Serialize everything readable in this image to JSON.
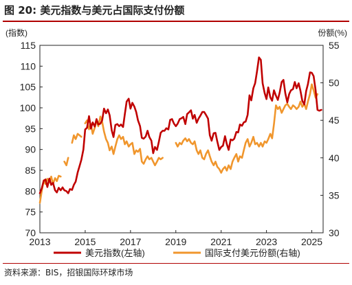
{
  "header": {
    "figure_label": "图 20:",
    "title": "美元指数与美元占国际支付份额"
  },
  "footer": {
    "source": "资料来源：BIS，招银国际环球市场"
  },
  "colors": {
    "accent_rule": "#b00000",
    "series_usd_index": "#c00000",
    "series_payment_share": "#f0962d",
    "axis": "#222222"
  },
  "chart_data": {
    "type": "line",
    "left_axis": {
      "label": "(指数)",
      "min": 70,
      "max": 115,
      "ticks": [
        70,
        75,
        80,
        85,
        90,
        95,
        100,
        105,
        110,
        115
      ]
    },
    "right_axis": {
      "label": "份额(%)",
      "min": 30,
      "max": 55,
      "ticks": [
        30,
        35,
        40,
        45,
        50,
        55
      ]
    },
    "x_axis": {
      "min": 2013,
      "max": 2025.5,
      "ticks": [
        2013,
        2015,
        2017,
        2019,
        2021,
        2023,
        2025
      ]
    },
    "grid": false,
    "legend_position": "bottom",
    "series": [
      {
        "name": "美元指数(左轴)",
        "axis": "left",
        "points": [
          [
            2013.0,
            79.5
          ],
          [
            2013.08,
            80.6
          ],
          [
            2013.17,
            82.5
          ],
          [
            2013.25,
            82.8
          ],
          [
            2013.33,
            81.0
          ],
          [
            2013.42,
            83.0
          ],
          [
            2013.5,
            81.5
          ],
          [
            2013.58,
            82.0
          ],
          [
            2013.67,
            80.2
          ],
          [
            2013.75,
            79.7
          ],
          [
            2013.83,
            80.8
          ],
          [
            2013.92,
            80.2
          ],
          [
            2014.0,
            80.9
          ],
          [
            2014.08,
            80.2
          ],
          [
            2014.17,
            80.0
          ],
          [
            2014.25,
            79.5
          ],
          [
            2014.33,
            80.5
          ],
          [
            2014.42,
            80.3
          ],
          [
            2014.5,
            81.5
          ],
          [
            2014.58,
            82.3
          ],
          [
            2014.67,
            84.5
          ],
          [
            2014.75,
            86.0
          ],
          [
            2014.83,
            87.5
          ],
          [
            2014.92,
            90.0
          ],
          [
            2015.0,
            94.8
          ],
          [
            2015.08,
            95.2
          ],
          [
            2015.17,
            98.0
          ],
          [
            2015.25,
            95.0
          ],
          [
            2015.33,
            96.5
          ],
          [
            2015.42,
            95.5
          ],
          [
            2015.5,
            97.3
          ],
          [
            2015.58,
            96.0
          ],
          [
            2015.67,
            96.2
          ],
          [
            2015.75,
            97.0
          ],
          [
            2015.83,
            99.8
          ],
          [
            2015.92,
            98.7
          ],
          [
            2016.0,
            99.6
          ],
          [
            2016.08,
            98.2
          ],
          [
            2016.17,
            94.6
          ],
          [
            2016.25,
            93.0
          ],
          [
            2016.33,
            95.9
          ],
          [
            2016.42,
            96.1
          ],
          [
            2016.5,
            95.6
          ],
          [
            2016.58,
            96.0
          ],
          [
            2016.67,
            95.4
          ],
          [
            2016.75,
            98.5
          ],
          [
            2016.83,
            101.5
          ],
          [
            2016.92,
            102.2
          ],
          [
            2017.0,
            99.8
          ],
          [
            2017.08,
            101.2
          ],
          [
            2017.17,
            100.3
          ],
          [
            2017.25,
            99.0
          ],
          [
            2017.33,
            97.0
          ],
          [
            2017.42,
            95.6
          ],
          [
            2017.5,
            92.8
          ],
          [
            2017.58,
            92.6
          ],
          [
            2017.67,
            93.1
          ],
          [
            2017.75,
            94.5
          ],
          [
            2017.83,
            93.0
          ],
          [
            2017.92,
            92.1
          ],
          [
            2018.0,
            89.1
          ],
          [
            2018.08,
            90.6
          ],
          [
            2018.17,
            89.9
          ],
          [
            2018.25,
            91.8
          ],
          [
            2018.33,
            94.0
          ],
          [
            2018.42,
            94.5
          ],
          [
            2018.5,
            94.5
          ],
          [
            2018.58,
            95.1
          ],
          [
            2018.67,
            94.8
          ],
          [
            2018.75,
            97.1
          ],
          [
            2018.83,
            97.3
          ],
          [
            2018.92,
            96.2
          ],
          [
            2019.0,
            95.6
          ],
          [
            2019.08,
            96.2
          ],
          [
            2019.17,
            97.3
          ],
          [
            2019.25,
            97.5
          ],
          [
            2019.33,
            97.8
          ],
          [
            2019.42,
            96.1
          ],
          [
            2019.5,
            98.5
          ],
          [
            2019.58,
            98.9
          ],
          [
            2019.67,
            99.4
          ],
          [
            2019.75,
            97.4
          ],
          [
            2019.83,
            98.3
          ],
          [
            2019.92,
            96.4
          ],
          [
            2020.0,
            97.4
          ],
          [
            2020.08,
            98.1
          ],
          [
            2020.17,
            99.0
          ],
          [
            2020.25,
            99.0
          ],
          [
            2020.33,
            98.3
          ],
          [
            2020.42,
            97.4
          ],
          [
            2020.5,
            93.4
          ],
          [
            2020.58,
            92.1
          ],
          [
            2020.67,
            93.9
          ],
          [
            2020.75,
            94.0
          ],
          [
            2020.83,
            91.9
          ],
          [
            2020.92,
            89.9
          ],
          [
            2021.0,
            90.6
          ],
          [
            2021.08,
            90.9
          ],
          [
            2021.17,
            93.2
          ],
          [
            2021.25,
            91.3
          ],
          [
            2021.33,
            89.9
          ],
          [
            2021.42,
            92.4
          ],
          [
            2021.5,
            92.2
          ],
          [
            2021.58,
            92.6
          ],
          [
            2021.67,
            94.2
          ],
          [
            2021.75,
            94.1
          ],
          [
            2021.83,
            96.0
          ],
          [
            2021.92,
            95.7
          ],
          [
            2022.0,
            96.5
          ],
          [
            2022.08,
            96.7
          ],
          [
            2022.17,
            98.3
          ],
          [
            2022.25,
            103.0
          ],
          [
            2022.33,
            101.8
          ],
          [
            2022.42,
            104.7
          ],
          [
            2022.5,
            105.9
          ],
          [
            2022.58,
            108.7
          ],
          [
            2022.67,
            112.1
          ],
          [
            2022.75,
            111.5
          ],
          [
            2022.83,
            105.9
          ],
          [
            2022.92,
            103.5
          ],
          [
            2023.0,
            102.1
          ],
          [
            2023.08,
            104.9
          ],
          [
            2023.17,
            102.5
          ],
          [
            2023.25,
            101.7
          ],
          [
            2023.33,
            104.2
          ],
          [
            2023.42,
            102.9
          ],
          [
            2023.5,
            101.9
          ],
          [
            2023.58,
            103.6
          ],
          [
            2023.67,
            106.2
          ],
          [
            2023.75,
            106.7
          ],
          [
            2023.83,
            103.5
          ],
          [
            2023.92,
            101.3
          ],
          [
            2024.0,
            103.3
          ],
          [
            2024.08,
            104.2
          ],
          [
            2024.17,
            104.5
          ],
          [
            2024.25,
            106.2
          ],
          [
            2024.33,
            104.7
          ],
          [
            2024.42,
            105.9
          ],
          [
            2024.5,
            104.1
          ],
          [
            2024.58,
            101.7
          ],
          [
            2024.67,
            100.8
          ],
          [
            2024.75,
            104.0
          ],
          [
            2024.83,
            105.7
          ],
          [
            2024.92,
            108.5
          ],
          [
            2025.0,
            108.4
          ],
          [
            2025.08,
            107.6
          ],
          [
            2025.17,
            104.2
          ],
          [
            2025.25,
            99.5
          ],
          [
            2025.33,
            99.3
          ],
          [
            2025.42,
            99.5
          ]
        ]
      },
      {
        "name": "国际支付美元份额(右轴)",
        "axis": "right",
        "points": [
          [
            2013.0,
            34.0
          ],
          [
            2013.08,
            35.5
          ],
          [
            2013.17,
            37.0
          ],
          [
            2013.25,
            36.5
          ],
          [
            2013.33,
            37.2
          ],
          [
            2013.42,
            36.8
          ],
          [
            2013.5,
            37.5
          ],
          [
            2013.58,
            36.5
          ],
          [
            2013.67,
            37.3
          ],
          [
            2013.75,
            36.9
          ],
          [
            2013.83,
            37.6
          ],
          [
            2013.92,
            37.5
          ],
          "gap",
          [
            2014.08,
            39.5
          ],
          [
            2014.17,
            39.0
          ],
          [
            2014.25,
            40.0
          ],
          "gap",
          [
            2014.42,
            42.0
          ],
          [
            2014.5,
            43.0
          ],
          [
            2014.58,
            42.5
          ],
          [
            2014.67,
            43.2
          ],
          [
            2014.75,
            43.0
          ],
          [
            2014.83,
            42.8
          ],
          "gap",
          [
            2015.0,
            44.6
          ],
          [
            2015.08,
            45.0
          ],
          [
            2015.17,
            43.8
          ],
          [
            2015.25,
            44.5
          ],
          [
            2015.33,
            43.2
          ],
          [
            2015.42,
            44.0
          ],
          [
            2015.5,
            45.0
          ],
          [
            2015.58,
            44.2
          ],
          [
            2015.67,
            45.5
          ],
          [
            2015.75,
            44.8
          ],
          [
            2015.83,
            43.5
          ],
          [
            2015.92,
            42.5
          ],
          [
            2016.0,
            42.0
          ],
          [
            2016.08,
            41.0
          ],
          [
            2016.17,
            41.5
          ],
          [
            2016.25,
            40.5
          ],
          [
            2016.33,
            41.5
          ],
          [
            2016.42,
            42.5
          ],
          [
            2016.5,
            43.0
          ],
          [
            2016.58,
            42.5
          ],
          [
            2016.67,
            42.8
          ],
          [
            2016.75,
            41.8
          ],
          [
            2016.83,
            42.2
          ],
          [
            2016.92,
            41.5
          ],
          [
            2017.0,
            41.8
          ],
          [
            2017.08,
            42.0
          ],
          [
            2017.17,
            40.5
          ],
          [
            2017.25,
            41.0
          ],
          [
            2017.33,
            40.8
          ],
          [
            2017.42,
            41.2
          ],
          [
            2017.5,
            39.5
          ],
          [
            2017.58,
            39.2
          ],
          [
            2017.67,
            39.8
          ],
          [
            2017.75,
            40.2
          ],
          [
            2017.83,
            39.8
          ],
          [
            2017.92,
            40.0
          ],
          [
            2018.0,
            39.5
          ],
          [
            2018.08,
            39.0
          ],
          [
            2018.17,
            39.5
          ],
          [
            2018.25,
            40.0
          ],
          [
            2018.33,
            39.8
          ],
          [
            2018.42,
            40.0
          ],
          "gap",
          [
            2019.0,
            42.0
          ],
          [
            2019.08,
            41.5
          ],
          [
            2019.17,
            42.0
          ],
          [
            2019.25,
            41.8
          ],
          [
            2019.33,
            42.3
          ],
          [
            2019.42,
            42.6
          ],
          [
            2019.5,
            42.2
          ],
          [
            2019.58,
            42.5
          ],
          [
            2019.67,
            42.0
          ],
          [
            2019.75,
            41.8
          ],
          [
            2019.83,
            42.2
          ],
          [
            2019.92,
            41.0
          ],
          [
            2020.0,
            40.5
          ],
          [
            2020.08,
            41.0
          ],
          [
            2020.17,
            40.0
          ],
          [
            2020.25,
            39.8
          ],
          [
            2020.33,
            40.5
          ],
          [
            2020.42,
            41.0
          ],
          [
            2020.5,
            40.2
          ],
          [
            2020.58,
            39.5
          ],
          [
            2020.67,
            39.0
          ],
          [
            2020.75,
            39.5
          ],
          [
            2020.83,
            38.8
          ],
          [
            2020.92,
            38.5
          ],
          [
            2021.0,
            38.0
          ],
          [
            2021.08,
            38.5
          ],
          [
            2021.17,
            38.8
          ],
          [
            2021.25,
            38.3
          ],
          [
            2021.33,
            39.0
          ],
          [
            2021.42,
            38.5
          ],
          [
            2021.5,
            39.5
          ],
          [
            2021.58,
            40.0
          ],
          [
            2021.67,
            40.5
          ],
          [
            2021.75,
            39.5
          ],
          [
            2021.83,
            40.2
          ],
          [
            2021.92,
            40.0
          ],
          [
            2022.0,
            41.0
          ],
          [
            2022.08,
            42.0
          ],
          [
            2022.17,
            42.5
          ],
          [
            2022.25,
            41.5
          ],
          [
            2022.33,
            42.0
          ],
          [
            2022.42,
            42.8
          ],
          [
            2022.5,
            41.8
          ],
          [
            2022.58,
            42.0
          ],
          [
            2022.67,
            41.5
          ],
          [
            2022.75,
            42.0
          ],
          [
            2022.83,
            41.5
          ],
          [
            2022.92,
            42.2
          ],
          [
            2023.0,
            42.0
          ],
          [
            2023.08,
            42.5
          ],
          [
            2023.17,
            43.2
          ],
          [
            2023.25,
            42.6
          ],
          [
            2023.33,
            44.5
          ],
          [
            2023.42,
            47.0
          ],
          [
            2023.5,
            46.5
          ],
          [
            2023.58,
            46.8
          ],
          [
            2023.67,
            46.0
          ],
          [
            2023.75,
            46.5
          ],
          [
            2023.83,
            47.0
          ],
          [
            2023.92,
            47.2
          ],
          [
            2024.0,
            46.8
          ],
          [
            2024.08,
            46.5
          ],
          [
            2024.17,
            47.0
          ],
          [
            2024.25,
            46.8
          ],
          [
            2024.33,
            46.5
          ],
          [
            2024.42,
            46.8
          ],
          [
            2024.5,
            47.5
          ],
          [
            2024.58,
            46.8
          ],
          [
            2024.67,
            47.2
          ],
          [
            2024.75,
            46.5
          ],
          [
            2024.83,
            47.5
          ],
          [
            2024.92,
            48.5
          ],
          [
            2025.0,
            49.8
          ],
          [
            2025.08,
            49.0
          ],
          [
            2025.17,
            48.0
          ],
          [
            2025.25,
            48.5
          ]
        ]
      }
    ]
  }
}
